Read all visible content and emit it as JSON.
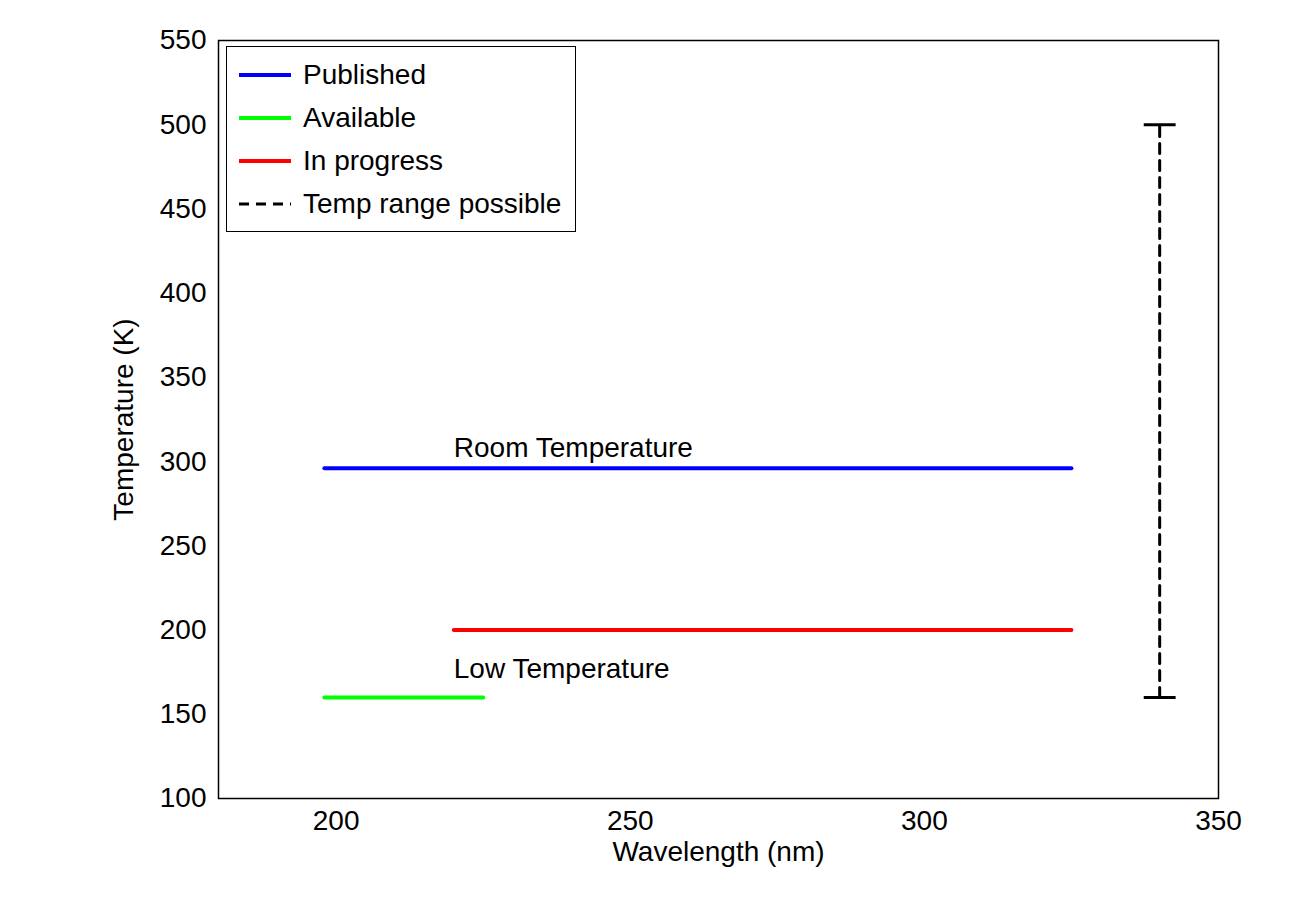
{
  "chart_data": {
    "type": "line",
    "xlabel": "Wavelength (nm)",
    "ylabel": "Temperature (K)",
    "xlim": [
      180,
      350
    ],
    "xticks": [
      200,
      250,
      300,
      350
    ],
    "ylim": [
      100,
      550
    ],
    "yticks": [
      100,
      150,
      200,
      250,
      300,
      350,
      400,
      450,
      500,
      550
    ],
    "grid": false,
    "legend": "upper left",
    "series": [
      {
        "name": "Published",
        "color": "#0000ff",
        "line_style": "solid",
        "x": [
          198,
          325
        ],
        "values": [
          296,
          296
        ]
      },
      {
        "name": "Available",
        "color": "#00ff00",
        "line_style": "solid",
        "x": [
          198,
          225
        ],
        "values": [
          160,
          160
        ]
      },
      {
        "name": "In progress",
        "color": "#ff0000",
        "line_style": "solid",
        "x": [
          220,
          325
        ],
        "values": [
          200,
          200
        ]
      },
      {
        "name": "Temp range possible",
        "color": "#000000",
        "line_style": "dashed",
        "marker": "cap",
        "x": [
          340,
          340
        ],
        "values": [
          160,
          500
        ]
      }
    ],
    "annotations": [
      {
        "text": "Room Temperature",
        "x": 220,
        "y": 308
      },
      {
        "text": "Low Temperature",
        "x": 220,
        "y": 177
      }
    ]
  }
}
